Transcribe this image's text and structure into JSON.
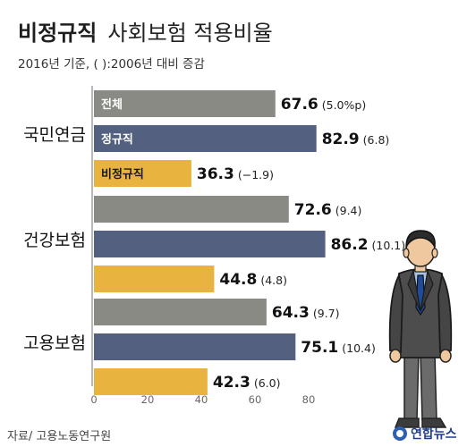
{
  "chart_data": {
    "type": "bar",
    "orientation": "horizontal",
    "title": {
      "bold": "비정규직",
      "rest": "사회보험 적용비율"
    },
    "subtitle": "2016년 기준, ( ):2006년 대비 증감",
    "categories": [
      "국민연금",
      "건강보험",
      "고용보험"
    ],
    "series": [
      {
        "name": "전체",
        "color": "#8a8a85",
        "values": [
          67.6,
          72.6,
          64.3
        ],
        "changes": [
          "5.0%p",
          "9.4",
          "9.7"
        ]
      },
      {
        "name": "정규직",
        "color": "#53607f",
        "values": [
          82.9,
          86.2,
          75.1
        ],
        "changes": [
          "6.8",
          "10.1",
          "10.4"
        ]
      },
      {
        "name": "비정규직",
        "color": "#e9b33f",
        "values": [
          36.3,
          44.8,
          42.3
        ],
        "changes": [
          "−1.9",
          "4.8",
          "6.0"
        ]
      }
    ],
    "xlim": [
      0,
      100
    ],
    "xticks": [
      0,
      20,
      40,
      60,
      80
    ],
    "grid": false,
    "legend": "series labels inside first group's bars"
  },
  "footer": {
    "source": "자료/ 고용노동연구원",
    "brand": "연합뉴스"
  },
  "illustration": {
    "name": "businessman-figure"
  }
}
